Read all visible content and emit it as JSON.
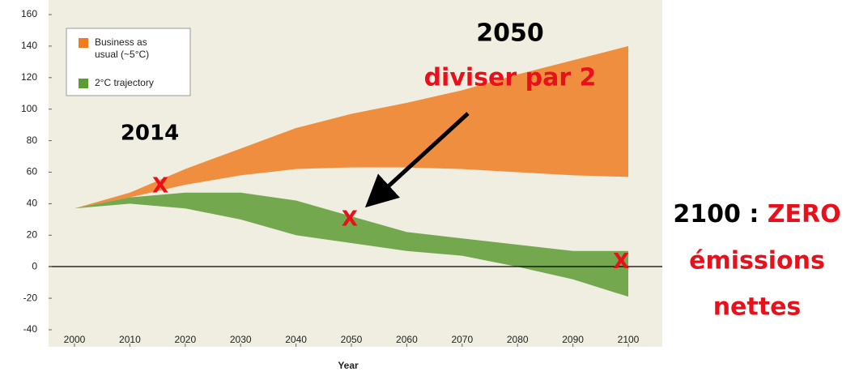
{
  "chart_data": {
    "type": "range_area",
    "x_label": "Year",
    "x": [
      2000,
      2010,
      2020,
      2030,
      2040,
      2050,
      2060,
      2070,
      2080,
      2090,
      2100
    ],
    "series": [
      {
        "name": "Business as usual (~5°C)",
        "color": "#f07c22",
        "low": [
          37,
          44,
          52,
          58,
          62,
          63,
          63,
          62,
          60,
          58,
          57
        ],
        "high": [
          37,
          47,
          62,
          75,
          88,
          97,
          104,
          112,
          122,
          131,
          140
        ]
      },
      {
        "name": "2°C trajectory",
        "color": "#5d9b34",
        "low": [
          37,
          40,
          37,
          30,
          20,
          15,
          10,
          7,
          0,
          -8,
          -19
        ],
        "high": [
          37,
          44,
          47,
          47,
          42,
          32,
          22,
          18,
          14,
          10,
          10
        ]
      }
    ],
    "xlim": [
      2000,
      2100
    ],
    "xticks": [
      2000,
      2010,
      2020,
      2030,
      2040,
      2050,
      2060,
      2070,
      2080,
      2090,
      2100
    ],
    "ylim": [
      -40,
      160
    ],
    "yticks": [
      -40,
      -20,
      0,
      20,
      40,
      60,
      80,
      100,
      120,
      140,
      160
    ],
    "markers": [
      {
        "label": "X",
        "x": 2015.5,
        "y": 51
      },
      {
        "label": "X",
        "x": 2049.7,
        "y": 30
      },
      {
        "label": "X",
        "x": 2098.7,
        "y": 3
      }
    ],
    "annotations": {
      "start": "2014",
      "mid_year": "2050",
      "mid_text": "diviser par 2",
      "end_year": "2100 : ",
      "end_zero": "ZERO",
      "end_line2": "émissions",
      "end_line3": "nettes"
    }
  }
}
